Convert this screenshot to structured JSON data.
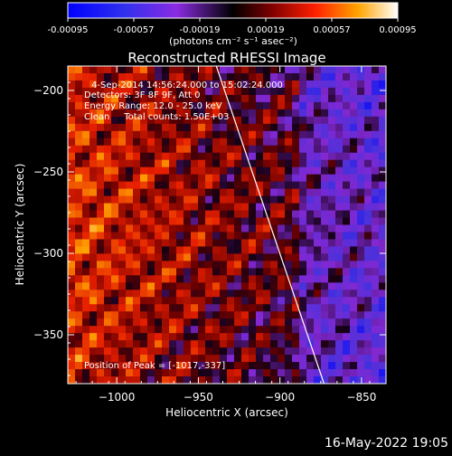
{
  "chart_data": {
    "type": "heatmap",
    "title": "Reconstructed RHESSI Image",
    "xlabel": "Heliocentric X (arcsec)",
    "ylabel": "Heliocentric Y (arcsec)",
    "xlim": [
      -1030,
      -835
    ],
    "ylim": [
      -380,
      -185
    ],
    "x_ticks": [
      -1000,
      -950,
      -900,
      -850
    ],
    "y_ticks": [
      -350,
      -300,
      -250,
      -200
    ],
    "colorbar": {
      "min": -0.00095,
      "max": 0.00095,
      "tick_values": [
        -0.00095,
        -0.00057,
        -0.00019,
        0.00019,
        0.00057,
        0.00095
      ],
      "tick_labels": [
        "-0.00095",
        "-0.00057",
        "-0.00019",
        "0.00019",
        "0.00057",
        "0.00095"
      ],
      "unit_label": "(photons cm⁻² s⁻¹ asec⁻²)"
    },
    "annotations": [
      "4-Sep-2014 14:56:24.000 to 15:02:24.000",
      "Detectors: 3F 8F 9F, Att 0",
      "Energy Range: 12.0 - 25.0 keV",
      "Clean     Total counts: 1.50E+03"
    ],
    "peak_label": "Position of Peak = [-1017,-337]",
    "limb_line": {
      "x1": -939,
      "y1": -185,
      "x2": -873,
      "y2": -380
    }
  },
  "footer": {
    "timestamp": "16-May-2022 19:05"
  }
}
